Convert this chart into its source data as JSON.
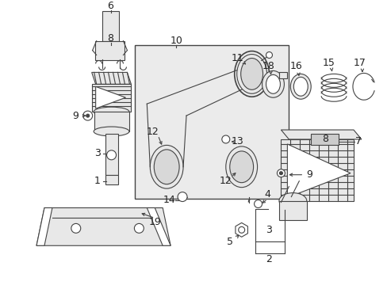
{
  "bg_color": "#ffffff",
  "line_color": "#444444",
  "label_color": "#222222",
  "label_fontsize": 9,
  "small_label_fontsize": 8,
  "lw": 0.8,
  "gray_fill": "#e8e8e8",
  "dot_fill": "#aaaaaa"
}
